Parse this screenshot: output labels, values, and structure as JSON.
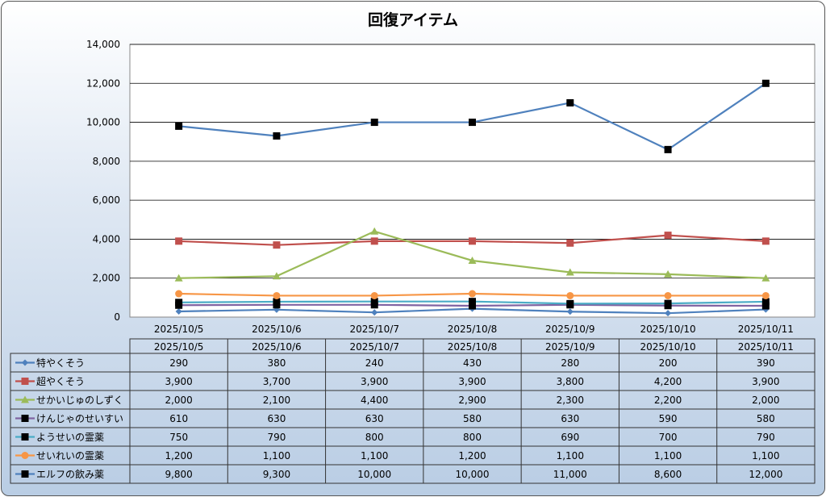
{
  "chart_data": {
    "type": "line",
    "title": "回復アイテム",
    "categories": [
      "2025/10/5",
      "2025/10/6",
      "2025/10/7",
      "2025/10/8",
      "2025/10/9",
      "2025/10/10",
      "2025/10/11"
    ],
    "ylim": [
      0,
      14000
    ],
    "yticks": [
      "0",
      "2,000",
      "4,000",
      "6,000",
      "8,000",
      "10,000",
      "12,000",
      "14,000"
    ],
    "ytick_values": [
      0,
      2000,
      4000,
      6000,
      8000,
      10000,
      12000,
      14000
    ],
    "grid": true,
    "legend": "data-table",
    "series": [
      {
        "name": "特やくそう",
        "color": "#4F81BD",
        "marker": "diamond",
        "values": [
          290,
          380,
          240,
          430,
          280,
          200,
          390
        ],
        "labels": [
          "290",
          "380",
          "240",
          "430",
          "280",
          "200",
          "390"
        ]
      },
      {
        "name": "超やくそう",
        "color": "#C0504D",
        "marker": "square",
        "values": [
          3900,
          3700,
          3900,
          3900,
          3800,
          4200,
          3900
        ],
        "labels": [
          "3,900",
          "3,700",
          "3,900",
          "3,900",
          "3,800",
          "4,200",
          "3,900"
        ]
      },
      {
        "name": "せかいじゅのしずく",
        "color": "#9BBB59",
        "marker": "triangle",
        "values": [
          2000,
          2100,
          4400,
          2900,
          2300,
          2200,
          2000
        ],
        "labels": [
          "2,000",
          "2,100",
          "4,400",
          "2,900",
          "2,300",
          "2,200",
          "2,000"
        ]
      },
      {
        "name": "けんじゃのせいすい",
        "color": "#8064A2",
        "marker": "blacksquare",
        "values": [
          610,
          630,
          630,
          580,
          630,
          590,
          580
        ],
        "labels": [
          "610",
          "630",
          "630",
          "580",
          "630",
          "590",
          "580"
        ]
      },
      {
        "name": "ようせいの霊薬",
        "color": "#4BACC6",
        "marker": "blacksquare",
        "values": [
          750,
          790,
          800,
          800,
          690,
          700,
          790
        ],
        "labels": [
          "750",
          "790",
          "800",
          "800",
          "690",
          "700",
          "790"
        ]
      },
      {
        "name": "せいれいの霊薬",
        "color": "#F79646",
        "marker": "circle",
        "values": [
          1200,
          1100,
          1100,
          1200,
          1100,
          1100,
          1100
        ],
        "labels": [
          "1,200",
          "1,100",
          "1,100",
          "1,200",
          "1,100",
          "1,100",
          "1,100"
        ]
      },
      {
        "name": "エルフの飲み薬",
        "color": "#4F81BD",
        "marker": "blacksquare",
        "values": [
          9800,
          9300,
          10000,
          10000,
          11000,
          8600,
          12000
        ],
        "labels": [
          "9,800",
          "9,300",
          "10,000",
          "10,000",
          "11,000",
          "8,600",
          "12,000"
        ]
      }
    ]
  }
}
